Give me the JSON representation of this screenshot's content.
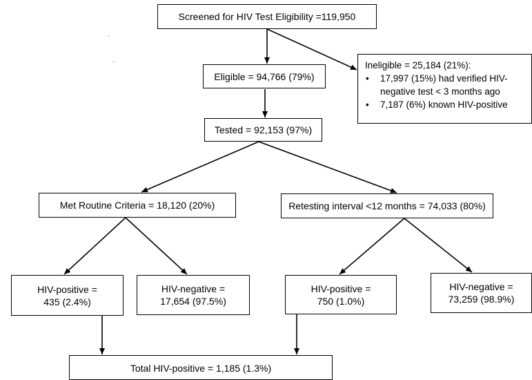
{
  "nodes": {
    "screened": "Screened for HIV Test Eligibility =119,950",
    "eligible": "Eligible = 94,766 (79%)",
    "ineligible": {
      "title": "Ineligible = 25,184 (21%):",
      "bullets": [
        "17,997 (15%) had verified HIV-negative test < 3 months ago",
        "7,187 (6%) known HIV-positive"
      ]
    },
    "tested": "Tested = 92,153 (97%)",
    "routine": "Met Routine Criteria = 18,120 (20%)",
    "retest": "Retesting interval <12 months = 74,033 (80%)",
    "routine_pos": {
      "line1": "HIV-positive =",
      "line2": "435 (2.4%)"
    },
    "routine_neg": {
      "line1": "HIV-negative =",
      "line2": "17,654 (97.5%)"
    },
    "retest_pos": {
      "line1": "HIV-positive =",
      "line2": "750 (1.0%)"
    },
    "retest_neg": {
      "line1": "HIV-negative =",
      "line2": "73,259 (98.9%)"
    },
    "total_pos": "Total HIV-positive = 1,185 (1.3%)"
  },
  "colors": {
    "line": "#000000",
    "box_border": "#000000",
    "background": "#ffffff"
  }
}
